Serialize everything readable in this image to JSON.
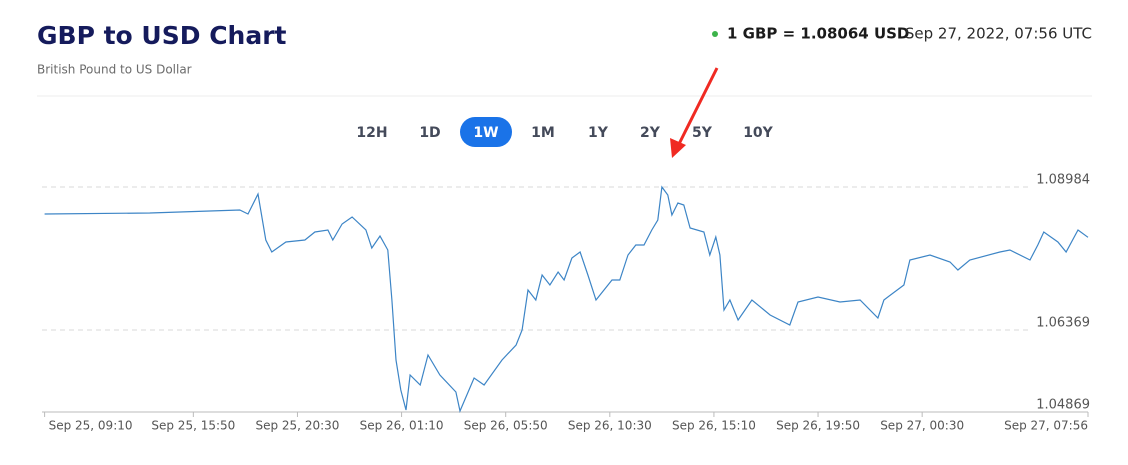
{
  "header": {
    "rate": "1 GBP = 1.08064 USD",
    "timestamp": "Sep 27, 2022, 07:56 UTC"
  },
  "range_buttons": {
    "items": [
      "12H",
      "1D",
      "1W",
      "1M",
      "1Y",
      "2Y",
      "5Y",
      "10Y"
    ],
    "active": 2
  },
  "chart_data": {
    "type": "line",
    "title": "GBP to USD Chart",
    "subtitle": "British Pound to US Dollar",
    "x": [
      "Sep 25, 09:10",
      "Sep 25, 13:53",
      "Sep 25, 17:55",
      "Sep 25, 18:17",
      "Sep 25, 18:44",
      "Sep 25, 19:05",
      "Sep 25, 19:21",
      "Sep 25, 19:59",
      "Sep 25, 20:50",
      "Sep 25, 21:17",
      "Sep 25, 21:52",
      "Sep 25, 22:05",
      "Sep 25, 22:30",
      "Sep 25, 22:57",
      "Sep 25, 23:34",
      "Sep 25, 23:50",
      "Sep 26, 00:12",
      "Sep 26, 00:33",
      "Sep 26, 00:44",
      "Sep 26, 00:55",
      "Sep 26, 01:08",
      "Sep 26, 01:22",
      "Sep 26, 01:33",
      "Sep 26, 02:00",
      "Sep 26, 02:21",
      "Sep 26, 02:53",
      "Sep 26, 03:36",
      "Sep 26, 03:47",
      "Sep 26, 04:25",
      "Sep 26, 04:52",
      "Sep 26, 05:40",
      "Sep 26, 06:18",
      "Sep 26, 06:34",
      "Sep 26, 06:50",
      "Sep 26, 07:11",
      "Sep 26, 07:28",
      "Sep 26, 07:49",
      "Sep 26, 08:11",
      "Sep 26, 08:27",
      "Sep 26, 08:48",
      "Sep 26, 09:10",
      "Sep 26, 09:31",
      "Sep 26, 09:53",
      "Sep 26, 10:36",
      "Sep 26, 10:57",
      "Sep 26, 11:19",
      "Sep 26, 11:40",
      "Sep 26, 12:02",
      "Sep 26, 12:23",
      "Sep 26, 12:39",
      "Sep 26, 12:50",
      "Sep 26, 13:06",
      "Sep 26, 13:17",
      "Sep 26, 13:33",
      "Sep 26, 13:49",
      "Sep 26, 14:06",
      "Sep 26, 14:43",
      "Sep 26, 14:59",
      "Sep 26, 15:15",
      "Sep 26, 15:26",
      "Sep 26, 15:37",
      "Sep 26, 15:53",
      "Sep 26, 16:15",
      "Sep 26, 16:52",
      "Sep 26, 17:41",
      "Sep 26, 18:34",
      "Sep 26, 18:56",
      "Sep 26, 19:50",
      "Sep 26, 20:49",
      "Sep 26, 21:43",
      "Sep 26, 22:31",
      "Sep 26, 22:47",
      "Sep 26, 23:41",
      "Sep 26, 23:57",
      "Sep 27, 00:51",
      "Sep 27, 01:45",
      "Sep 27, 02:06",
      "Sep 27, 02:38",
      "Sep 27, 03:59",
      "Sep 27, 04:26",
      "Sep 27, 05:20",
      "Sep 27, 05:41",
      "Sep 27, 05:57",
      "Sep 27, 06:35",
      "Sep 27, 06:57",
      "Sep 27, 07:29",
      "Sep 27, 07:56"
    ],
    "series": [
      {
        "color": "#3d85c6",
        "values": [
          1.0849,
          1.08509,
          1.08564,
          1.0849,
          1.08856,
          1.08015,
          1.07795,
          1.07978,
          1.08015,
          1.08161,
          1.08198,
          1.08015,
          1.08308,
          1.08436,
          1.08198,
          1.07869,
          1.08088,
          1.07832,
          1.06917,
          1.0582,
          1.05271,
          1.04906,
          1.05546,
          1.05363,
          1.05912,
          1.05546,
          1.05235,
          1.04887,
          1.05491,
          1.05363,
          1.0582,
          1.06094,
          1.06369,
          1.071,
          1.06917,
          1.07375,
          1.07192,
          1.0743,
          1.07283,
          1.07686,
          1.07795,
          1.07375,
          1.06917,
          1.07283,
          1.07283,
          1.07741,
          1.07923,
          1.07923,
          1.08198,
          1.08381,
          1.08984,
          1.08838,
          1.08472,
          1.08692,
          1.08655,
          1.08234,
          1.08161,
          1.07741,
          1.0807,
          1.07741,
          1.06735,
          1.06917,
          1.06552,
          1.06917,
          1.06643,
          1.0646,
          1.06881,
          1.06972,
          1.06881,
          1.06917,
          1.06588,
          1.06917,
          1.07192,
          1.07649,
          1.07741,
          1.07613,
          1.07466,
          1.07649,
          1.07795,
          1.07832,
          1.07649,
          1.07923,
          1.08161,
          1.07978,
          1.07795,
          1.08198,
          1.08064
        ]
      }
    ],
    "xlim": [
      "Sep 25, 09:10",
      "Sep 27, 07:56"
    ],
    "xticks": [
      "Sep 25, 09:10",
      "Sep 25, 15:50",
      "Sep 25, 20:30",
      "Sep 26, 01:10",
      "Sep 26, 05:50",
      "Sep 26, 10:30",
      "Sep 26, 15:10",
      "Sep 26, 19:50",
      "Sep 27, 00:30",
      "Sep 27, 07:56"
    ],
    "ylim": [
      1.04869,
      1.08984
    ],
    "yticks": [
      1.04869,
      1.06369,
      1.08984
    ],
    "grid": true
  }
}
